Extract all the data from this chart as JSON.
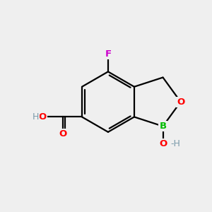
{
  "background_color": "#efefef",
  "atom_colors": {
    "C": "#000000",
    "O": "#ff0000",
    "B": "#00bb00",
    "F": "#cc00cc",
    "H": "#7a9aaa"
  },
  "bond_color": "#000000",
  "bond_width": 1.6,
  "figsize": [
    3.0,
    3.0
  ],
  "dpi": 100,
  "BCx": 5.1,
  "BCy": 5.2,
  "hex_r": 1.45
}
